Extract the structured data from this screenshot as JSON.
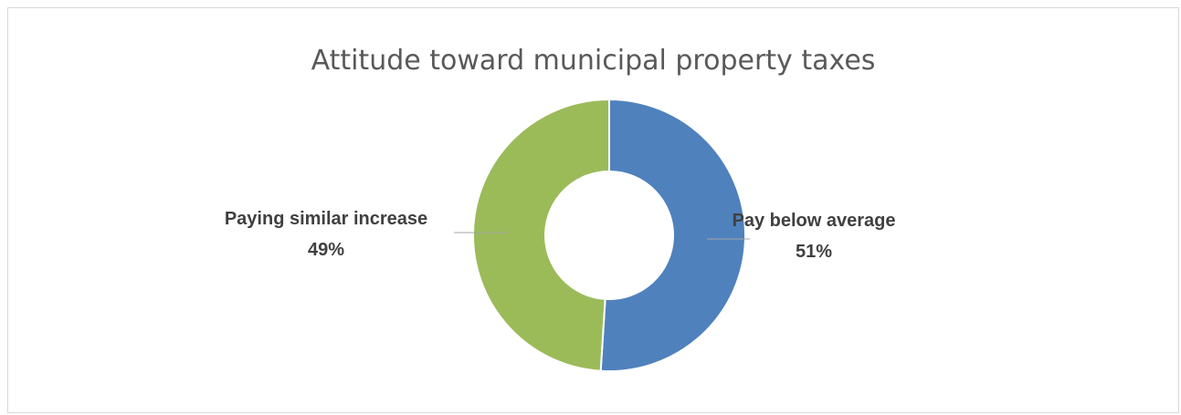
{
  "chart_data": {
    "type": "pie",
    "variant": "donut",
    "title": "Attitude toward municipal property taxes",
    "slices": [
      {
        "label": "Pay below average",
        "value": 51,
        "value_label": "51%",
        "color": "#4f81bd"
      },
      {
        "label": "Paying similar increase",
        "value": 49,
        "value_label": "49%",
        "color": "#9bbb59"
      }
    ],
    "legend": "none",
    "start_angle_deg": 0,
    "direction": "clockwise"
  }
}
